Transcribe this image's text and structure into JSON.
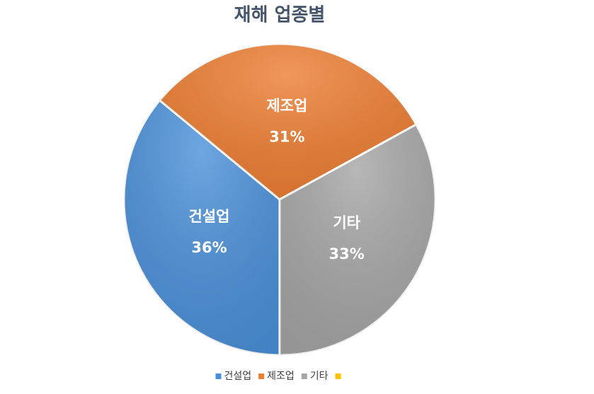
{
  "chart_data": {
    "type": "pie",
    "title": "재해 업종별",
    "categories": [
      "건설업",
      "제조업",
      "기타",
      null
    ],
    "values": [
      36,
      31,
      33,
      null
    ],
    "value_labels": [
      "36%",
      "31%",
      "33%",
      null
    ],
    "colors": [
      "#4a90d9",
      "#ed7d31",
      "#a5a5a5",
      "#ffc000"
    ]
  }
}
